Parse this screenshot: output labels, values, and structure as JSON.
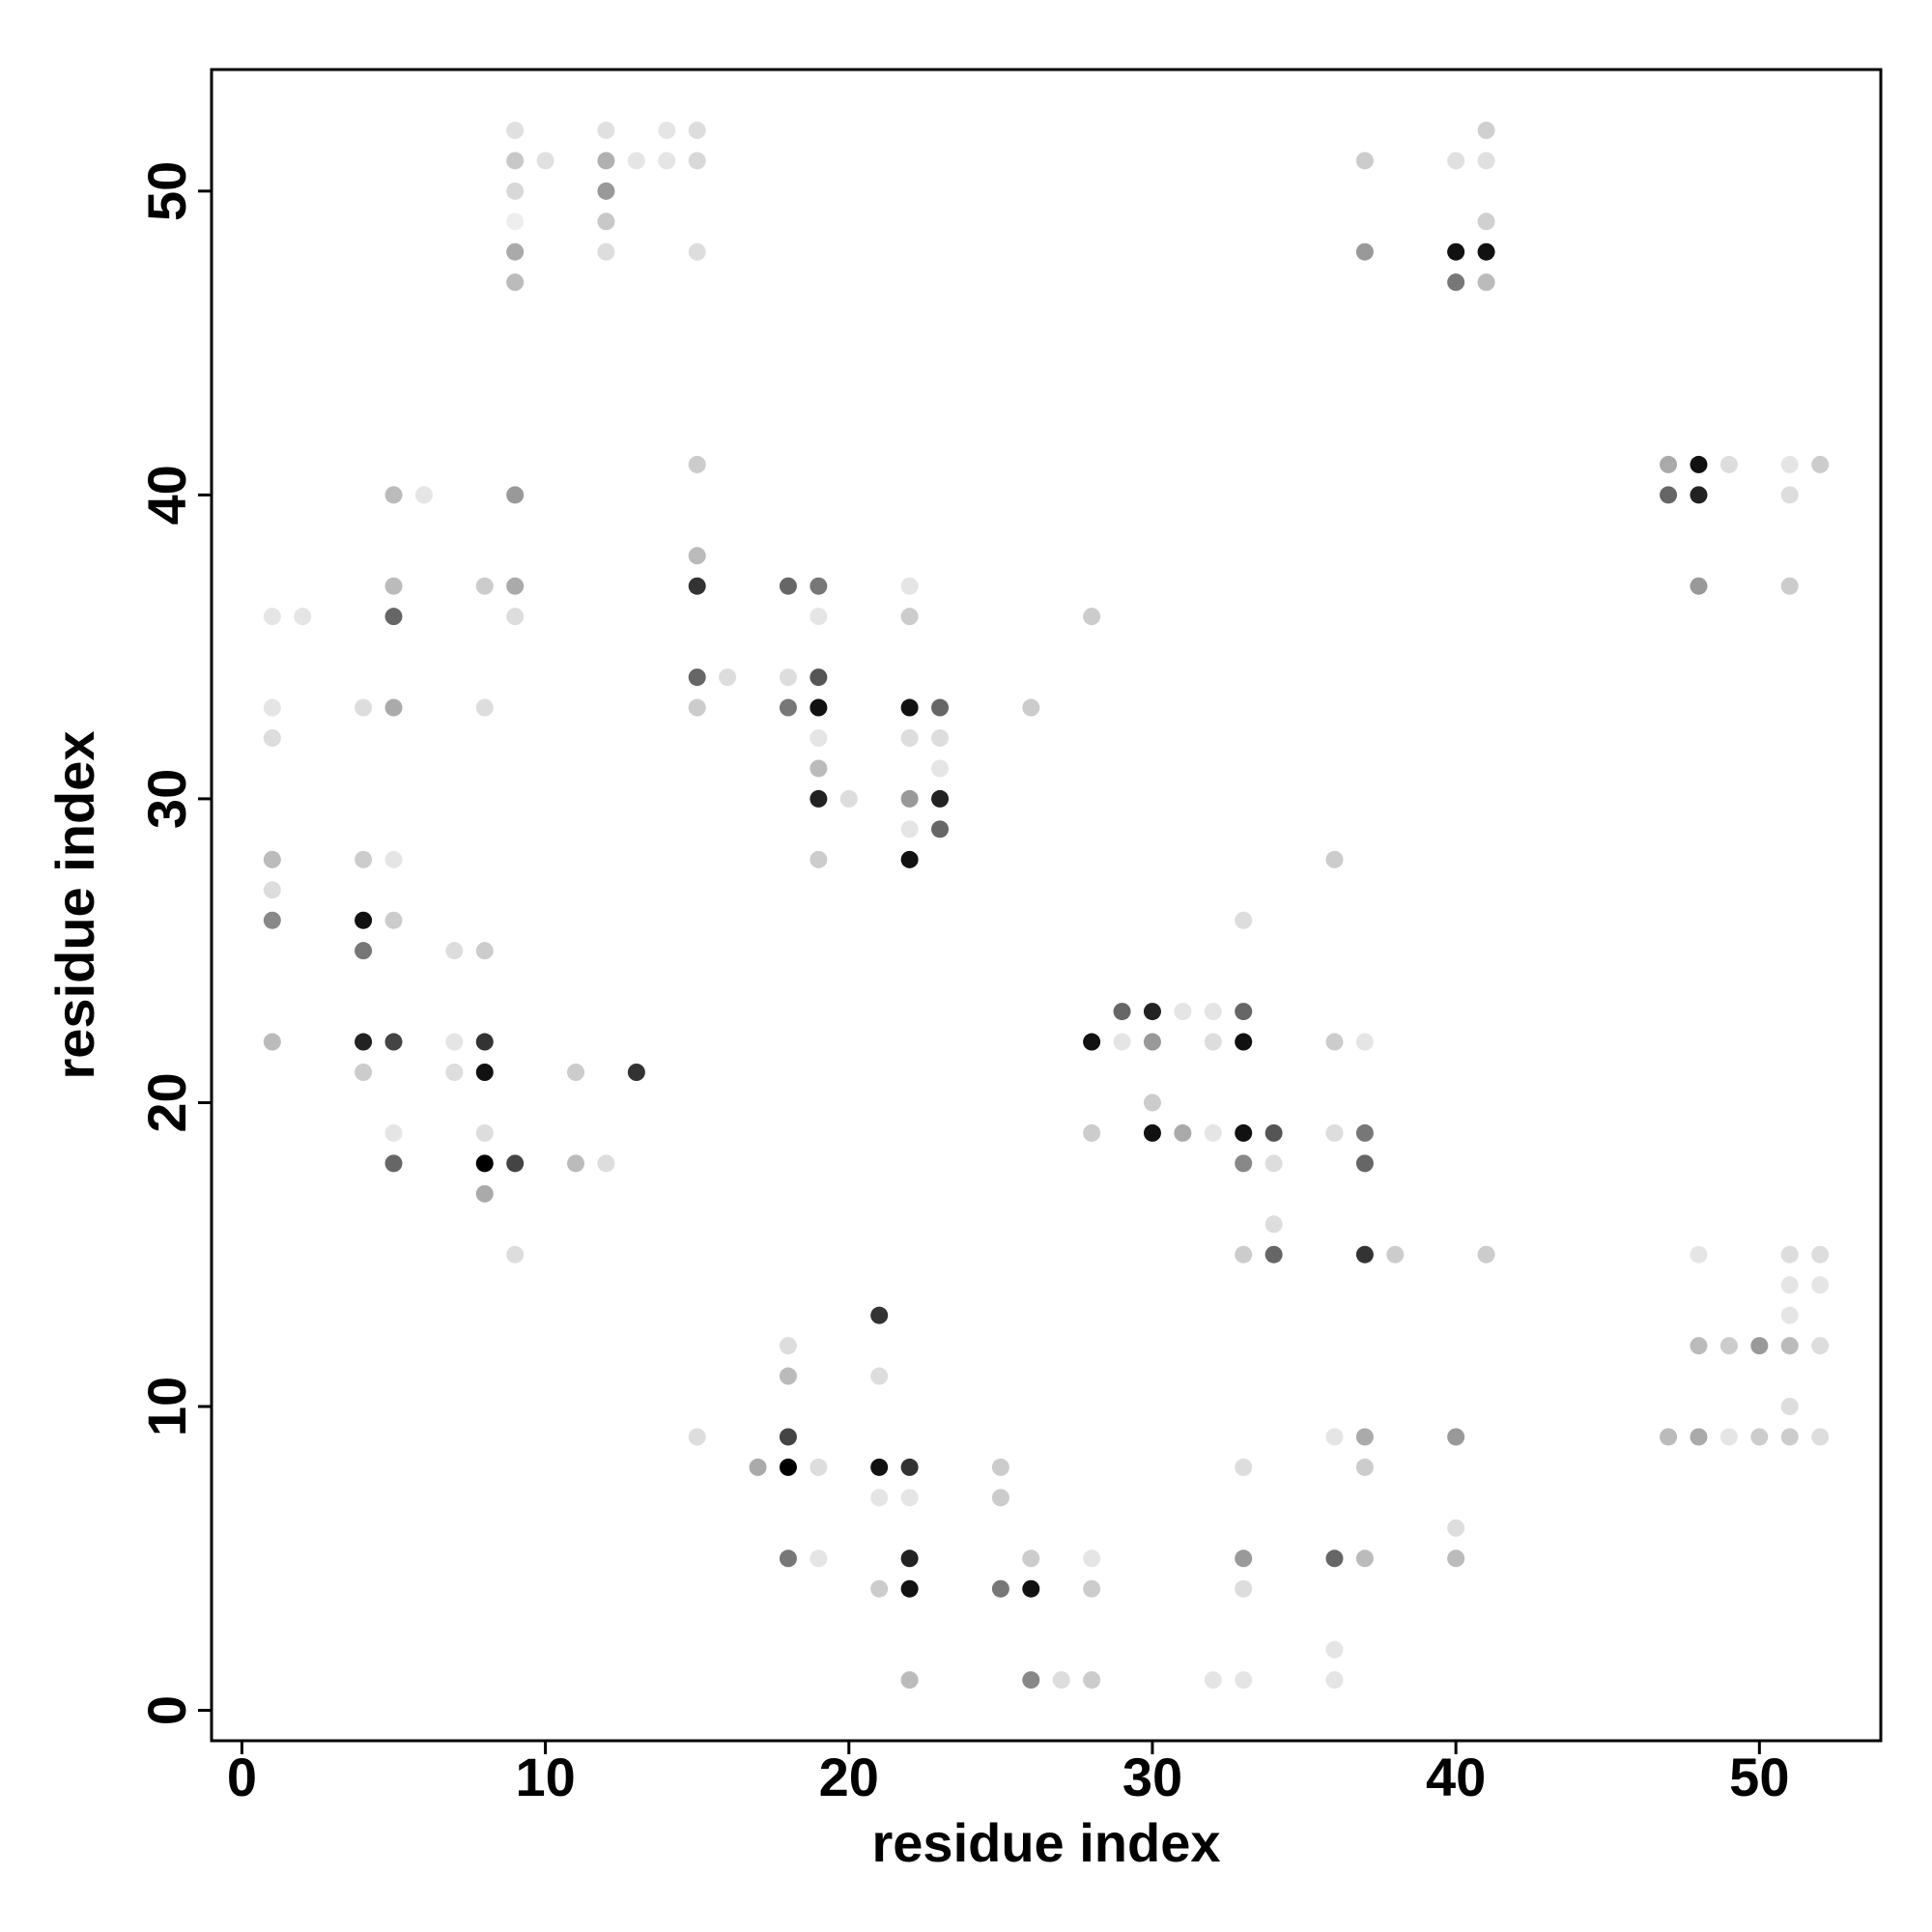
{
  "chart_data": {
    "type": "scatter",
    "xlabel": "residue index",
    "ylabel": "residue index",
    "xlim": [
      -1,
      54
    ],
    "ylim": [
      -1,
      54
    ],
    "xticks": [
      0,
      10,
      20,
      30,
      40,
      50
    ],
    "yticks": [
      0,
      10,
      20,
      30,
      40,
      50
    ],
    "x": [
      9,
      12,
      14,
      15,
      41,
      9,
      10,
      12,
      13,
      14,
      15,
      37,
      40,
      41,
      9,
      12,
      9,
      12,
      41,
      9,
      12,
      15,
      37,
      40,
      41,
      9,
      40,
      41,
      15,
      47,
      48,
      49,
      51,
      52,
      5,
      6,
      9,
      47,
      48,
      51,
      15,
      5,
      8,
      9,
      15,
      18,
      19,
      22,
      48,
      51,
      1,
      2,
      5,
      9,
      19,
      22,
      28,
      15,
      16,
      18,
      19,
      1,
      4,
      5,
      8,
      15,
      18,
      19,
      22,
      23,
      26,
      1,
      19,
      22,
      23,
      19,
      23,
      19,
      20,
      22,
      23,
      22,
      23,
      1,
      4,
      5,
      19,
      22,
      36,
      1,
      1,
      4,
      5,
      33,
      4,
      7,
      8,
      29,
      30,
      31,
      32,
      33,
      1,
      4,
      5,
      7,
      8,
      28,
      29,
      30,
      32,
      33,
      36,
      37,
      4,
      7,
      8,
      11,
      13,
      30,
      5,
      8,
      28,
      30,
      31,
      32,
      33,
      34,
      36,
      37,
      5,
      8,
      9,
      11,
      12,
      33,
      34,
      37,
      8,
      34,
      9,
      33,
      34,
      37,
      38,
      41,
      48,
      51,
      52,
      51,
      52,
      21,
      51,
      18,
      48,
      49,
      50,
      51,
      52,
      18,
      21,
      51,
      15,
      18,
      36,
      37,
      40,
      47,
      48,
      49,
      50,
      51,
      52,
      17,
      18,
      19,
      21,
      22,
      25,
      33,
      37,
      21,
      22,
      25,
      40,
      18,
      19,
      22,
      26,
      28,
      33,
      36,
      37,
      40,
      21,
      22,
      25,
      26,
      28,
      33,
      36,
      22,
      26,
      27,
      28,
      32,
      33,
      36
    ],
    "values": [
      52,
      52,
      52,
      52,
      52,
      51,
      51,
      51,
      51,
      51,
      51,
      51,
      51,
      51,
      50,
      50,
      49,
      49,
      49,
      48,
      48,
      48,
      48,
      48,
      48,
      47,
      47,
      47,
      41,
      41,
      41,
      41,
      41,
      41,
      40,
      40,
      40,
      40,
      40,
      40,
      38,
      37,
      37,
      37,
      37,
      37,
      37,
      37,
      37,
      37,
      36,
      36,
      36,
      36,
      36,
      36,
      36,
      34,
      34,
      34,
      34,
      33,
      33,
      33,
      33,
      33,
      33,
      33,
      33,
      33,
      33,
      32,
      32,
      32,
      32,
      31,
      31,
      30,
      30,
      30,
      30,
      29,
      29,
      28,
      28,
      28,
      28,
      28,
      28,
      27,
      26,
      26,
      26,
      26,
      25,
      25,
      25,
      23,
      23,
      23,
      23,
      23,
      22,
      22,
      22,
      22,
      22,
      22,
      22,
      22,
      22,
      22,
      22,
      22,
      21,
      21,
      21,
      21,
      21,
      20,
      19,
      19,
      19,
      19,
      19,
      19,
      19,
      19,
      19,
      19,
      18,
      18,
      18,
      18,
      18,
      18,
      18,
      18,
      17,
      16,
      15,
      15,
      15,
      15,
      15,
      15,
      15,
      15,
      15,
      14,
      14,
      13,
      13,
      12,
      12,
      12,
      12,
      12,
      12,
      11,
      11,
      10,
      9,
      9,
      9,
      9,
      9,
      9,
      9,
      9,
      9,
      9,
      9,
      8,
      8,
      8,
      8,
      8,
      8,
      8,
      8,
      7,
      7,
      7,
      6,
      5,
      5,
      5,
      5,
      5,
      5,
      5,
      5,
      5,
      4,
      4,
      4,
      4,
      4,
      4,
      2,
      1,
      1,
      1,
      1,
      1,
      1,
      1
    ],
    "colors": [
      "#e0e0e0",
      "#e0e0e0",
      "#e5e5e5",
      "#dddddd",
      "#d0d0d0",
      "#c8c8c8",
      "#e0e0e0",
      "#b0b0b0",
      "#e5e5e5",
      "#e5e5e5",
      "#d8d8d8",
      "#cccccc",
      "#e0e0e0",
      "#e0e0e0",
      "#d8d8d8",
      "#999999",
      "#eeeeee",
      "#c8c8c8",
      "#d0d0d0",
      "#aaaaaa",
      "#dddddd",
      "#dddddd",
      "#999999",
      "#111111",
      "#111111",
      "#bbbbbb",
      "#777777",
      "#bbbbbb",
      "#cccccc",
      "#aaaaaa",
      "#111111",
      "#dddddd",
      "#e5e5e5",
      "#cccccc",
      "#bbbbbb",
      "#e5e5e5",
      "#999999",
      "#666666",
      "#222222",
      "#dddddd",
      "#bbbbbb",
      "#bbbbbb",
      "#cccccc",
      "#aaaaaa",
      "#333333",
      "#666666",
      "#777777",
      "#e5e5e5",
      "#999999",
      "#cccccc",
      "#e5e5e5",
      "#e5e5e5",
      "#666666",
      "#dddddd",
      "#e5e5e5",
      "#cccccc",
      "#cccccc",
      "#666666",
      "#dddddd",
      "#dddddd",
      "#555555",
      "#e5e5e5",
      "#dddddd",
      "#aaaaaa",
      "#dddddd",
      "#cccccc",
      "#777777",
      "#111111",
      "#111111",
      "#666666",
      "#cccccc",
      "#dddddd",
      "#e5e5e5",
      "#dddddd",
      "#dddddd",
      "#bbbbbb",
      "#e5e5e5",
      "#222222",
      "#dddddd",
      "#999999",
      "#222222",
      "#e5e5e5",
      "#666666",
      "#bbbbbb",
      "#cccccc",
      "#e5e5e5",
      "#cccccc",
      "#111111",
      "#cccccc",
      "#dddddd",
      "#888888",
      "#111111",
      "#cccccc",
      "#dddddd",
      "#777777",
      "#dddddd",
      "#cccccc",
      "#666666",
      "#222222",
      "#e5e5e5",
      "#e5e5e5",
      "#666666",
      "#bbbbbb",
      "#222222",
      "#444444",
      "#e5e5e5",
      "#333333",
      "#111111",
      "#e5e5e5",
      "#999999",
      "#dddddd",
      "#111111",
      "#cccccc",
      "#e5e5e5",
      "#cccccc",
      "#dddddd",
      "#111111",
      "#cccccc",
      "#333333",
      "#cccccc",
      "#e5e5e5",
      "#dddddd",
      "#cccccc",
      "#111111",
      "#aaaaaa",
      "#e5e5e5",
      "#111111",
      "#555555",
      "#dddddd",
      "#777777",
      "#666666",
      "#000000",
      "#444444",
      "#bbbbbb",
      "#dddddd",
      "#888888",
      "#dddddd",
      "#666666",
      "#aaaaaa",
      "#dddddd",
      "#dddddd",
      "#cccccc",
      "#666666",
      "#333333",
      "#cccccc",
      "#cccccc",
      "#e5e5e5",
      "#dddddd",
      "#dddddd",
      "#e5e5e5",
      "#e5e5e5",
      "#333333",
      "#e5e5e5",
      "#dddddd",
      "#bbbbbb",
      "#cccccc",
      "#999999",
      "#bbbbbb",
      "#dddddd",
      "#bbbbbb",
      "#dddddd",
      "#dddddd",
      "#dddddd",
      "#444444",
      "#e5e5e5",
      "#aaaaaa",
      "#999999",
      "#bbbbbb",
      "#aaaaaa",
      "#e5e5e5",
      "#cccccc",
      "#cccccc",
      "#dddddd",
      "#aaaaaa",
      "#000000",
      "#dddddd",
      "#111111",
      "#333333",
      "#cccccc",
      "#dddddd",
      "#cccccc",
      "#e5e5e5",
      "#e5e5e5",
      "#cccccc",
      "#dddddd",
      "#777777",
      "#e5e5e5",
      "#222222",
      "#cccccc",
      "#e5e5e5",
      "#999999",
      "#666666",
      "#bbbbbb",
      "#bbbbbb",
      "#cccccc",
      "#111111",
      "#777777",
      "#111111",
      "#cccccc",
      "#dddddd",
      "#e5e5e5",
      "#bbbbbb",
      "#888888",
      "#dddddd",
      "#cccccc",
      "#e5e5e5",
      "#e5e5e5",
      "#e5e5e5"
    ]
  }
}
